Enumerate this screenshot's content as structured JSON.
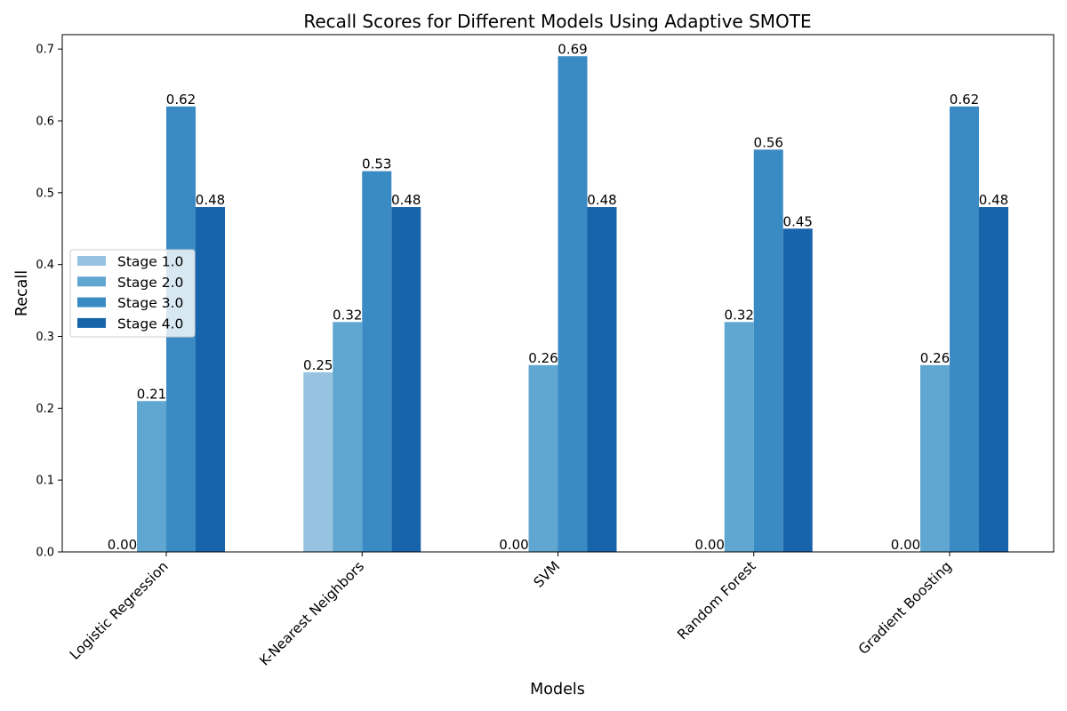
{
  "chart_data": {
    "type": "bar",
    "title": "Recall Scores for Different Models Using Adaptive SMOTE",
    "xlabel": "Models",
    "ylabel": "Recall",
    "ylim": [
      0,
      0.72
    ],
    "yticks": [
      "0.0",
      "0.1",
      "0.2",
      "0.3",
      "0.4",
      "0.5",
      "0.6",
      "0.7"
    ],
    "categories": [
      "Logistic Regression",
      "K-Nearest Neighbors",
      "SVM",
      "Random Forest",
      "Gradient Boosting"
    ],
    "series": [
      {
        "name": "Stage 1.0",
        "color": "#95c3e0",
        "values": [
          0.0,
          0.25,
          0.0,
          0.0,
          0.0
        ]
      },
      {
        "name": "Stage 2.0",
        "color": "#5fa6d1",
        "values": [
          0.21,
          0.32,
          0.26,
          0.32,
          0.26
        ]
      },
      {
        "name": "Stage 3.0",
        "color": "#3a8ac4",
        "values": [
          0.62,
          0.53,
          0.69,
          0.56,
          0.62
        ]
      },
      {
        "name": "Stage 4.0",
        "color": "#1864aa",
        "values": [
          0.48,
          0.48,
          0.48,
          0.45,
          0.48
        ]
      }
    ],
    "data_labels": [
      [
        "0.00",
        "0.25",
        "0.00",
        "0.00",
        "0.00"
      ],
      [
        "0.21",
        "0.32",
        "0.26",
        "0.32",
        "0.26"
      ],
      [
        "0.62",
        "0.53",
        "0.69",
        "0.56",
        "0.62"
      ],
      [
        "0.48",
        "0.48",
        "0.48",
        "0.45",
        "0.48"
      ]
    ],
    "legend_position": "center-left",
    "grid": false
  }
}
